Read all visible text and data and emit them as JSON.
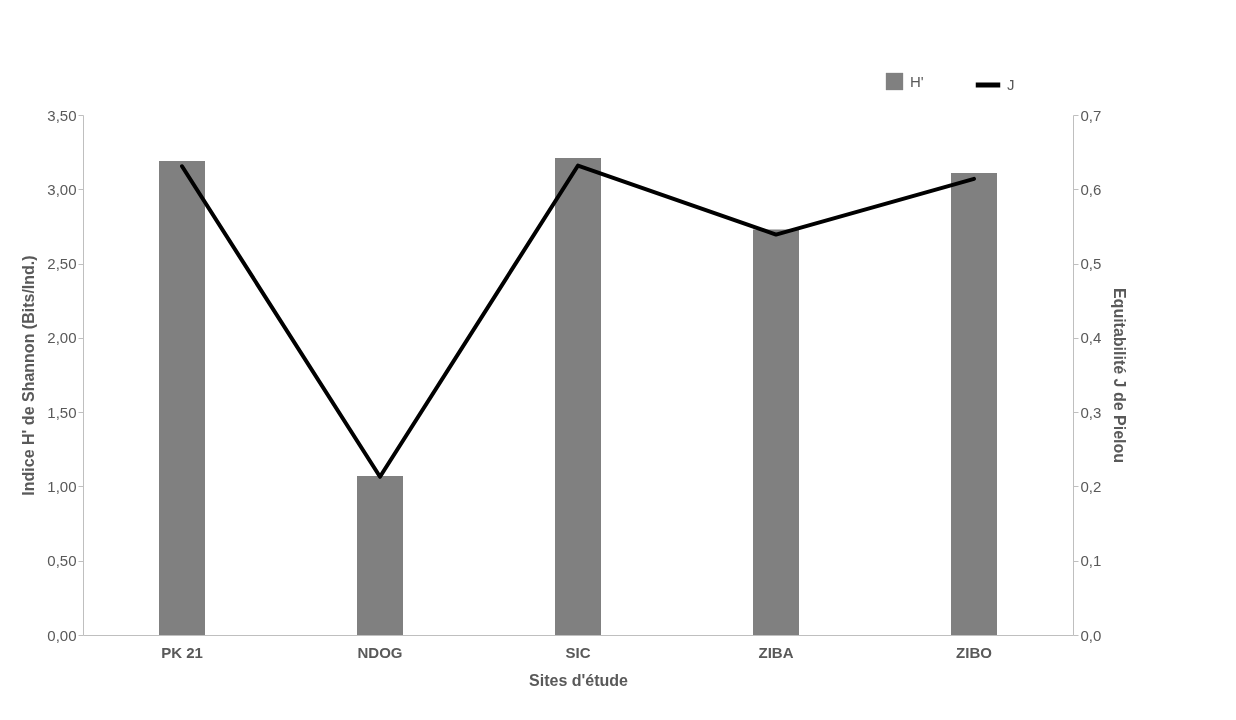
{
  "chart_data": {
    "type": "bar",
    "xlabel": "Sites d'étude",
    "ylabel": "Indice H' de Shannon (Bits/Ind.)",
    "y2label": "Equitabilité J de Pielou",
    "categories": [
      "PK 21",
      "NDOG",
      "SIC",
      "ZIBA",
      "ZIBO"
    ],
    "series": [
      {
        "name": "H'",
        "color": "#808080",
        "values": [
          3.19,
          1.07,
          3.21,
          2.73,
          3.11
        ]
      },
      {
        "name": "J",
        "type": "line",
        "axis": "y2",
        "color": "#000000",
        "values": [
          0.631,
          0.213,
          0.632,
          0.539,
          0.614
        ]
      }
    ],
    "ylim": [
      0,
      3.5
    ],
    "yticks": [
      {
        "value": 0,
        "label": "0,00"
      },
      {
        "value": 0.5,
        "label": "0,50"
      },
      {
        "value": 1,
        "label": "1,00"
      },
      {
        "value": 1.5,
        "label": "1,50"
      },
      {
        "value": 2,
        "label": "2,00"
      },
      {
        "value": 2.5,
        "label": "2,50"
      },
      {
        "value": 3,
        "label": "3,00"
      },
      {
        "value": 3.5,
        "label": "3,50"
      }
    ],
    "y2lim": [
      0,
      0.7
    ],
    "y2ticks": [
      {
        "value": 0,
        "label": "0,0"
      },
      {
        "value": 0.1,
        "label": "0,1"
      },
      {
        "value": 0.2,
        "label": "0,2"
      },
      {
        "value": 0.3,
        "label": "0,3"
      },
      {
        "value": 0.4,
        "label": "0,4"
      },
      {
        "value": 0.5,
        "label": "0,5"
      },
      {
        "value": 0.6,
        "label": "0,6"
      },
      {
        "value": 0.7,
        "label": "0,7"
      }
    ],
    "grid": false,
    "legend": "top right",
    "marker": "none",
    "line_style": "solid"
  }
}
